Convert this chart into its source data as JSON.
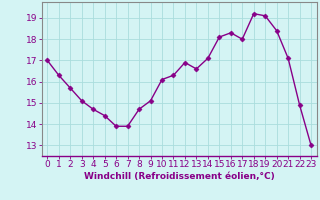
{
  "x": [
    0,
    1,
    2,
    3,
    4,
    5,
    6,
    7,
    8,
    9,
    10,
    11,
    12,
    13,
    14,
    15,
    16,
    17,
    18,
    19,
    20,
    21,
    22,
    23
  ],
  "y": [
    17.0,
    16.3,
    15.7,
    15.1,
    14.7,
    14.4,
    13.9,
    13.9,
    14.7,
    15.1,
    16.1,
    16.3,
    16.9,
    16.6,
    17.1,
    18.1,
    18.3,
    18.0,
    19.2,
    19.1,
    18.4,
    17.1,
    14.9,
    13.0
  ],
  "line_color": "#880088",
  "marker": "D",
  "marker_size": 2.5,
  "bg_color": "#d4f4f4",
  "grid_color": "#aadddd",
  "tick_color": "#880088",
  "label_color": "#880088",
  "xlabel": "Windchill (Refroidissement éolien,°C)",
  "ylim": [
    12.5,
    19.75
  ],
  "xlim": [
    -0.5,
    23.5
  ],
  "yticks": [
    13,
    14,
    15,
    16,
    17,
    18,
    19
  ],
  "xticks": [
    0,
    1,
    2,
    3,
    4,
    5,
    6,
    7,
    8,
    9,
    10,
    11,
    12,
    13,
    14,
    15,
    16,
    17,
    18,
    19,
    20,
    21,
    22,
    23
  ],
  "xlabel_fontsize": 6.5,
  "tick_fontsize": 6.5,
  "spine_color": "#888888",
  "linewidth": 1.0
}
